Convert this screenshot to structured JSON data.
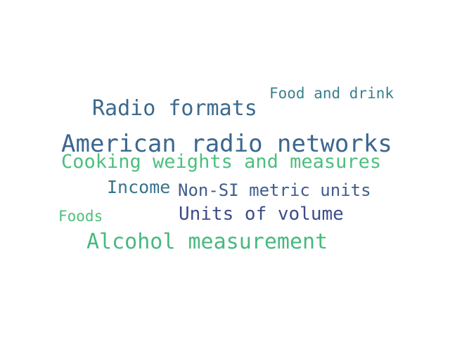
{
  "word_cloud": {
    "words": [
      {
        "text": "Food and drink",
        "color": "#3a7f8f"
      },
      {
        "text": "Radio formats",
        "color": "#3b6a8e"
      },
      {
        "text": "American radio networks",
        "color": "#3b6690"
      },
      {
        "text": "Cooking weights and measures",
        "color": "#4cbf7e"
      },
      {
        "text": "Income",
        "color": "#39738c"
      },
      {
        "text": "Non-SI metric units",
        "color": "#3e5d8d"
      },
      {
        "text": "Foods",
        "color": "#4dbf7c"
      },
      {
        "text": "Units of volume",
        "color": "#3e4b89"
      },
      {
        "text": "Alcohol measurement",
        "color": "#47b97f"
      }
    ]
  }
}
